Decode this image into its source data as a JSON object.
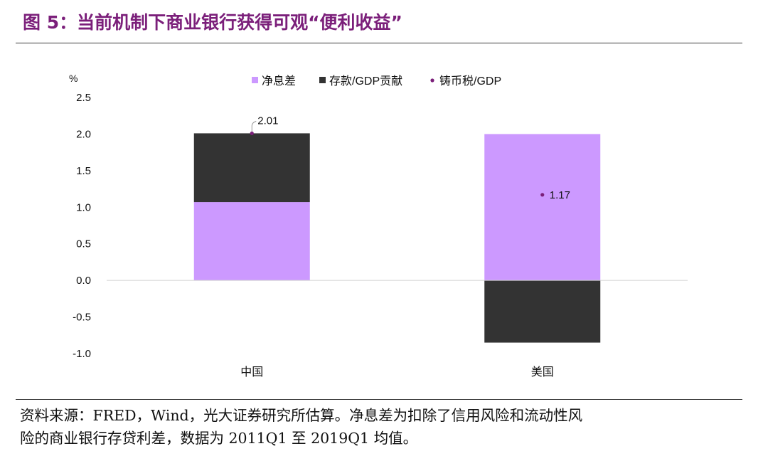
{
  "figure": {
    "title": "图 5：当前机制下商业银行获得可观“便利收益”",
    "source_line1": "资料来源：FRED，Wind，光大证券研究所估算。净息差为扣除了信用风险和流动性风",
    "source_line2": "险的商业银行存贷利差，数据为 2011Q1 至 2019Q1 均值。"
  },
  "chart_data": {
    "type": "bar",
    "stacked": true,
    "unit_label": "%",
    "categories": [
      "中国",
      "美国"
    ],
    "series": [
      {
        "name": "净息差",
        "kind": "bar",
        "color": "#cc99ff",
        "values": [
          1.07,
          2.0
        ]
      },
      {
        "name": "存款/GDP贡献",
        "kind": "bar",
        "color": "#333333",
        "values": [
          0.94,
          -0.85
        ]
      },
      {
        "name": "铸币税/GDP",
        "kind": "point",
        "color": "#7b1f7a",
        "values": [
          2.01,
          1.17
        ]
      }
    ],
    "point_labels": [
      "2.01",
      "1.17"
    ],
    "yticks": [
      "2.5",
      "2.0",
      "1.5",
      "1.0",
      "0.5",
      "0.0",
      "-0.5",
      "-1.0"
    ],
    "ylim": [
      -1.0,
      2.5
    ],
    "legend_position": "top",
    "grid": false
  }
}
